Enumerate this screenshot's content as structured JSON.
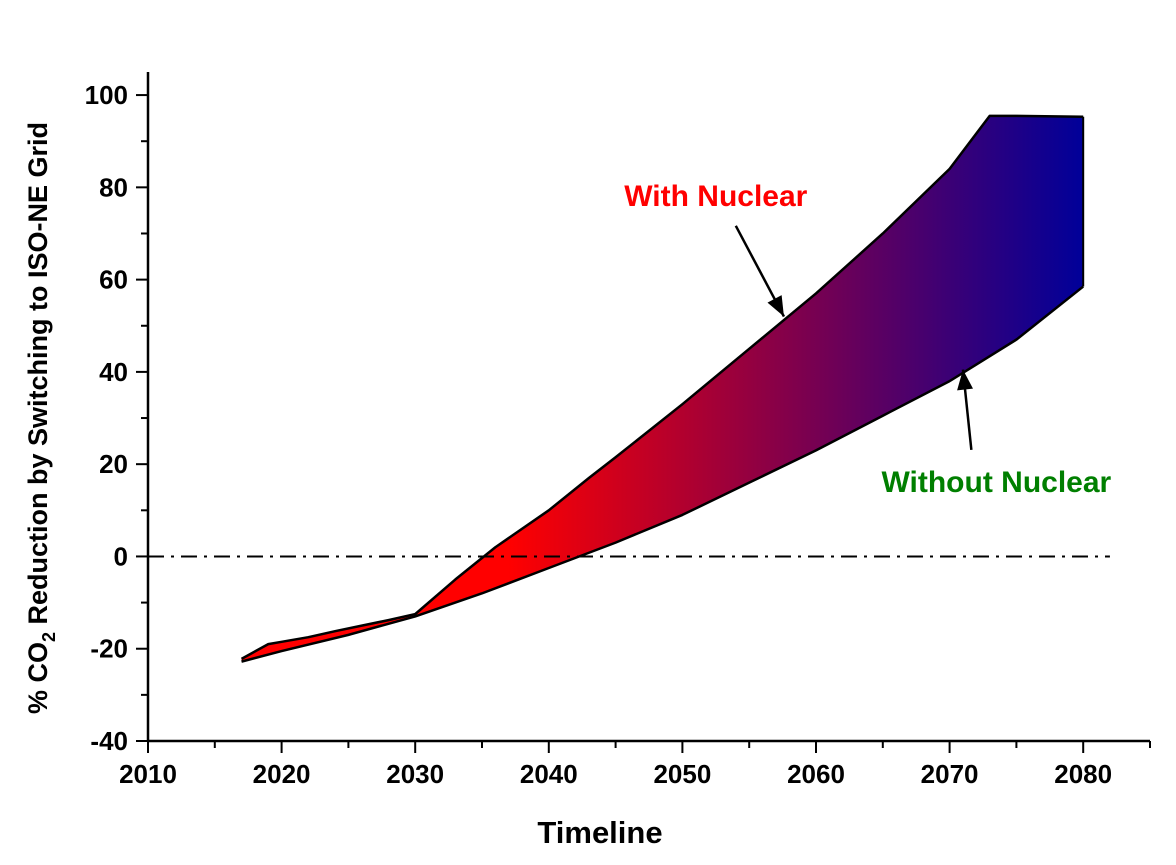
{
  "chart_data": {
    "type": "area",
    "xlabel": "Timeline",
    "ylabel": {
      "prefix": "% CO",
      "subscript": "2",
      "suffix": " Reduction by Switching to ISO-NE Grid"
    },
    "xlim": [
      2010,
      2085
    ],
    "ylim": [
      -40,
      105
    ],
    "xticks": [
      2010,
      2020,
      2030,
      2040,
      2050,
      2060,
      2070,
      2080
    ],
    "yticks": [
      -40,
      -20,
      0,
      20,
      40,
      60,
      80,
      100
    ],
    "grid": false,
    "reference_line": {
      "y": 0,
      "style": "dash-dot",
      "x_range": [
        2010,
        2082
      ]
    },
    "series": [
      {
        "name": "With Nuclear",
        "color": "#000000",
        "x": [
          2017,
          2019,
          2020,
          2022,
          2024,
          2026,
          2028,
          2030,
          2033,
          2036,
          2040,
          2043,
          2045,
          2050,
          2055,
          2060,
          2065,
          2070,
          2073,
          2075,
          2080
        ],
        "y": [
          -22.2,
          -19.0,
          -18.5,
          -17.5,
          -16.2,
          -15.0,
          -13.8,
          -12.5,
          -5.0,
          2.0,
          10.0,
          17.0,
          21.5,
          33.0,
          45.0,
          57.0,
          70.0,
          84.0,
          95.5,
          95.5,
          95.3
        ]
      },
      {
        "name": "Without Nuclear",
        "color": "#000000",
        "x": [
          2017,
          2020,
          2025,
          2030,
          2035,
          2040,
          2045,
          2050,
          2055,
          2060,
          2065,
          2070,
          2075,
          2080
        ],
        "y": [
          -22.8,
          -20.5,
          -17.0,
          -13.0,
          -8.0,
          -2.5,
          3.0,
          9.0,
          16.0,
          23.0,
          30.5,
          38.0,
          47.0,
          58.5
        ]
      }
    ],
    "fill_gradient": {
      "from": "#ff0000",
      "to": "#000099",
      "x_from": 2037,
      "x_to": 2080
    },
    "annotations": [
      {
        "text": "With Nuclear",
        "color": "#ff0000",
        "anchor_x": 2052.5,
        "anchor_y": 76,
        "arrow_to": [
          2057.6,
          52
        ]
      },
      {
        "text": "Without Nuclear",
        "color": "#007f00",
        "anchor_x": 2073.5,
        "anchor_y": 14,
        "arrow_to": [
          2071,
          40.5
        ]
      }
    ]
  }
}
